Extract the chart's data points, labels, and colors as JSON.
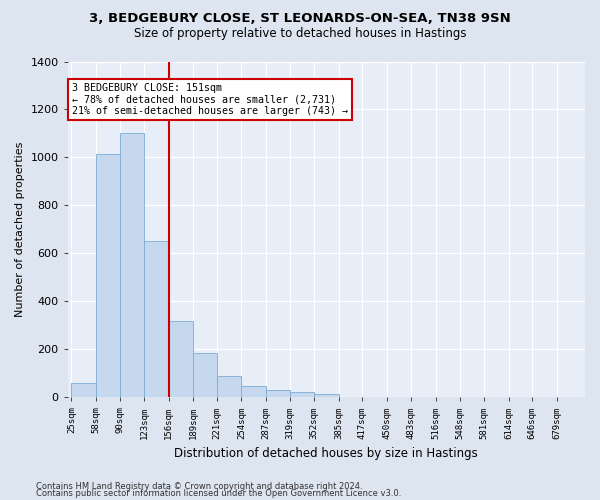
{
  "title_line1": "3, BEDGEBURY CLOSE, ST LEONARDS-ON-SEA, TN38 9SN",
  "title_line2": "Size of property relative to detached houses in Hastings",
  "xlabel": "Distribution of detached houses by size in Hastings",
  "ylabel": "Number of detached properties",
  "bar_color": "#c5d8ee",
  "bar_edgecolor": "#7aadd4",
  "vline_color": "#cc0000",
  "annotation_line1": "3 BEDGEBURY CLOSE: 151sqm",
  "annotation_line2": "← 78% of detached houses are smaller (2,731)",
  "annotation_line3": "21% of semi-detached houses are larger (743) →",
  "annotation_box_edgecolor": "#cc0000",
  "bin_edges": [
    25,
    58,
    90,
    123,
    156,
    189,
    221,
    254,
    287,
    319,
    352,
    385,
    417,
    450,
    483,
    516,
    548,
    581,
    614,
    646,
    679,
    712
  ],
  "values": [
    60,
    1015,
    1100,
    650,
    320,
    185,
    90,
    48,
    30,
    22,
    15,
    0,
    0,
    0,
    0,
    0,
    0,
    0,
    0,
    0,
    0
  ],
  "tick_labels": [
    "25sqm",
    "58sqm",
    "90sqm",
    "123sqm",
    "156sqm",
    "189sqm",
    "221sqm",
    "254sqm",
    "287sqm",
    "319sqm",
    "352sqm",
    "385sqm",
    "417sqm",
    "450sqm",
    "483sqm",
    "516sqm",
    "548sqm",
    "581sqm",
    "614sqm",
    "646sqm",
    "679sqm"
  ],
  "ylim": [
    0,
    1400
  ],
  "yticks": [
    0,
    200,
    400,
    600,
    800,
    1000,
    1200,
    1400
  ],
  "footnote1": "Contains HM Land Registry data © Crown copyright and database right 2024.",
  "footnote2": "Contains public sector information licensed under the Open Government Licence v3.0.",
  "fig_bg_color": "#dde5f0",
  "plot_bg_color": "#e8eef8"
}
